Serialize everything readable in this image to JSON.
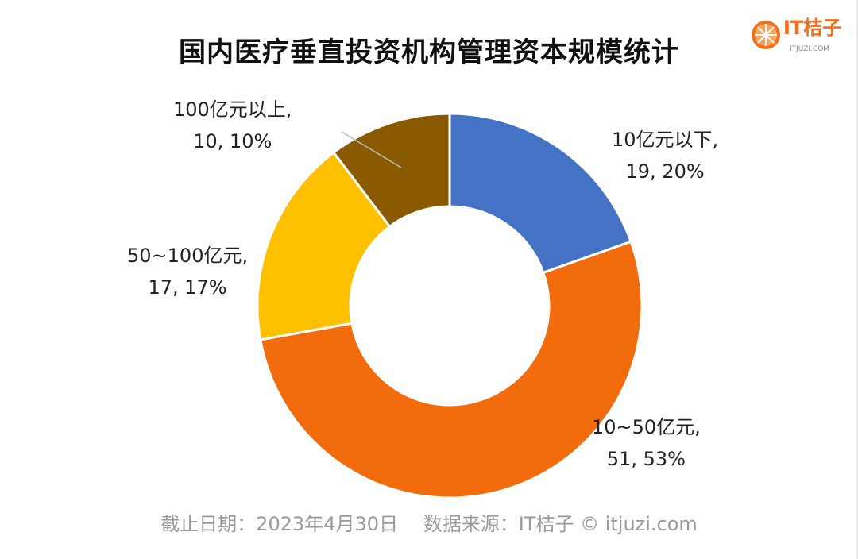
{
  "chart_data": {
    "type": "pie",
    "variant": "donut",
    "title": "国内医疗垂直投资机构管理资本规模统计",
    "categories": [
      "10亿元以下",
      "10~50亿元",
      "50~100亿元",
      "100亿元以上"
    ],
    "values": [
      19,
      51,
      17,
      10
    ],
    "percents": [
      "20%",
      "53%",
      "17%",
      "10%"
    ],
    "data_labels": [
      {
        "line1": "10亿元以下,",
        "line2": "19, 20%"
      },
      {
        "line1": "10~50亿元,",
        "line2": "51, 53%"
      },
      {
        "line1": "50~100亿元,",
        "line2": "17, 17%"
      },
      {
        "line1": "100亿元以上,",
        "line2": "10, 10%"
      }
    ],
    "colors": [
      "#4472C4",
      "#F26B0C",
      "#FFC000",
      "#8A5A00"
    ],
    "start": "top",
    "direction": "clockwise"
  },
  "logo": {
    "brand": "IT桔子",
    "sub": "ITJUZI.COM"
  },
  "footer": "截止日期：2023年4月30日　 数据来源：IT桔子 © itjuzi.com"
}
